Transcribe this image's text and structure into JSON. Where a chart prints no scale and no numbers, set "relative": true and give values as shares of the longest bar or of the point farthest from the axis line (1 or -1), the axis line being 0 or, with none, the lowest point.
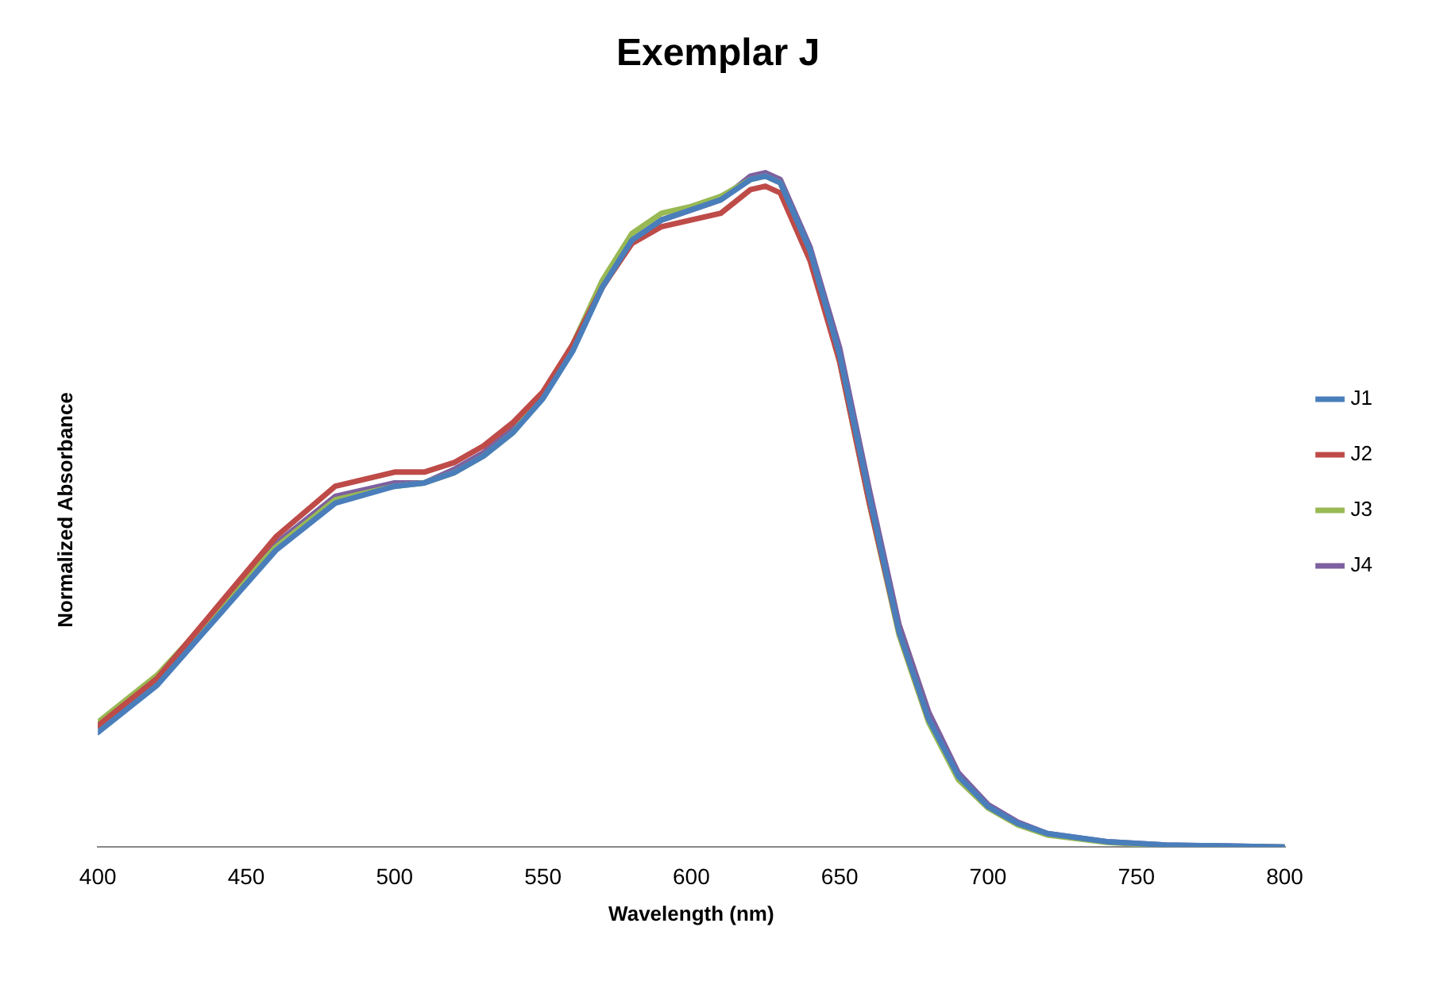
{
  "chart_data": {
    "type": "line",
    "title": "Exemplar J",
    "xlabel": "Wavelength (nm)",
    "ylabel": "Normalized Absorbance",
    "relative": true,
    "xlim": [
      400,
      800
    ],
    "xticks": [
      400,
      450,
      500,
      550,
      600,
      650,
      700,
      750,
      800
    ],
    "grid": false,
    "legend": "right",
    "marker": "none",
    "line_style": "solid",
    "x": [
      400,
      420,
      440,
      460,
      480,
      500,
      510,
      520,
      530,
      540,
      550,
      560,
      570,
      580,
      590,
      600,
      610,
      620,
      625,
      630,
      640,
      650,
      660,
      670,
      680,
      690,
      700,
      710,
      720,
      740,
      760,
      800
    ],
    "series": [
      {
        "name": "J1",
        "color": "#4a7ebb",
        "values": [
          0.17,
          0.24,
          0.34,
          0.44,
          0.51,
          0.535,
          0.54,
          0.555,
          0.58,
          0.615,
          0.665,
          0.735,
          0.83,
          0.9,
          0.93,
          0.945,
          0.96,
          0.99,
          0.995,
          0.985,
          0.885,
          0.73,
          0.52,
          0.32,
          0.19,
          0.105,
          0.06,
          0.035,
          0.02,
          0.008,
          0.003,
          0
        ]
      },
      {
        "name": "J2",
        "color": "#be4b48",
        "values": [
          0.18,
          0.25,
          0.355,
          0.46,
          0.535,
          0.556,
          0.556,
          0.57,
          0.595,
          0.63,
          0.675,
          0.745,
          0.83,
          0.895,
          0.92,
          0.93,
          0.94,
          0.975,
          0.98,
          0.97,
          0.87,
          0.72,
          0.51,
          0.32,
          0.19,
          null,
          null,
          null,
          null,
          null,
          null,
          null
        ]
      },
      {
        "name": "J3",
        "color": "#98b954",
        "values": [
          0.185,
          0.255,
          0.35,
          0.445,
          0.515,
          0.535,
          0.54,
          0.555,
          0.58,
          0.615,
          0.67,
          0.745,
          0.84,
          0.91,
          0.94,
          0.95,
          0.965,
          0.99,
          0.995,
          0.985,
          0.88,
          0.72,
          0.51,
          0.315,
          0.185,
          0.1,
          0.058,
          0.033,
          0.018,
          0.007,
          0.002,
          0
        ]
      },
      {
        "name": "J4",
        "color": "#7d60a0",
        "values": [
          0.18,
          0.25,
          0.35,
          0.45,
          0.52,
          0.54,
          0.54,
          0.56,
          0.585,
          0.62,
          0.67,
          0.74,
          0.83,
          0.9,
          0.93,
          0.945,
          0.96,
          0.995,
          1.0,
          0.99,
          0.89,
          0.74,
          0.53,
          0.33,
          0.2,
          0.11,
          0.063,
          0.037,
          0.02,
          0.008,
          0.003,
          0
        ]
      }
    ]
  }
}
